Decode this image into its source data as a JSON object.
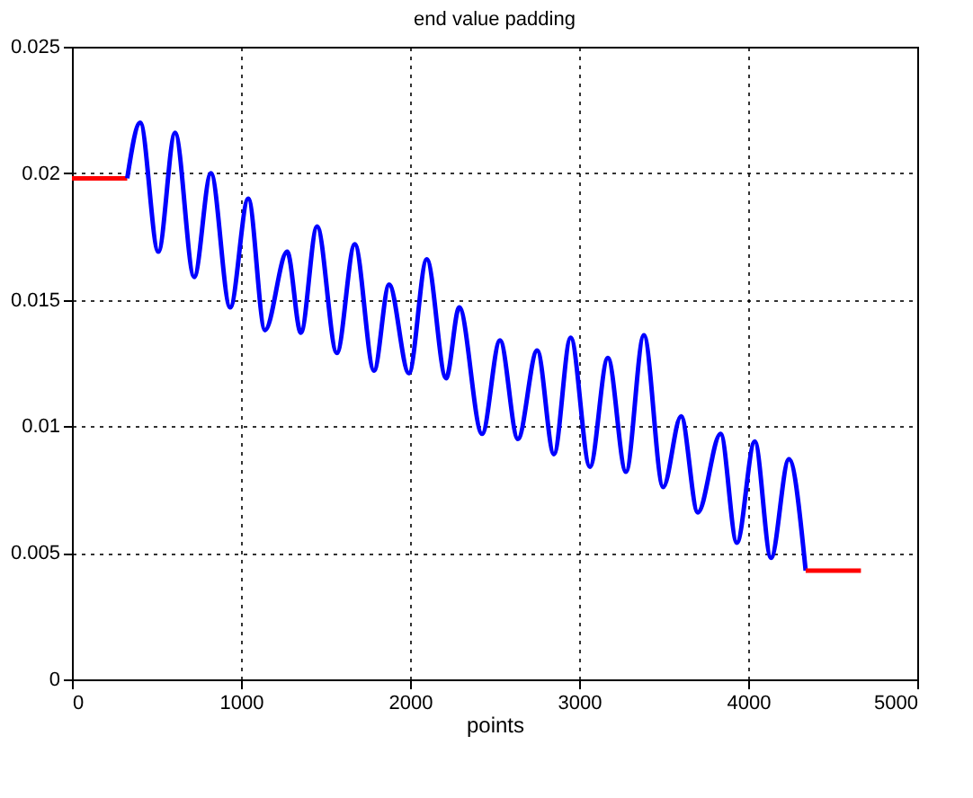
{
  "chart_data": {
    "type": "line",
    "title": "end value padding",
    "xlabel": "points",
    "series": [
      {
        "color": "#ff0000",
        "x": [
          0,
          327
        ],
        "values": [
          0.0198,
          0.0198
        ]
      },
      {
        "color": "#0000ff",
        "x": [
          327,
          404,
          511,
          610,
          723,
          822,
          936,
          1043,
          1142,
          1273,
          1354,
          1450,
          1567,
          1673,
          1787,
          1876,
          1993,
          2099,
          2213,
          2291,
          2426,
          2532,
          2638,
          2752,
          2851,
          2950,
          3064,
          3170,
          3277,
          3383,
          3497,
          3603,
          3702,
          3837,
          3933,
          4039,
          4135,
          4241,
          4340
        ],
        "values": [
          0.0198,
          0.022,
          0.0169,
          0.0216,
          0.0159,
          0.02,
          0.0147,
          0.019,
          0.0138,
          0.0169,
          0.0137,
          0.0179,
          0.0129,
          0.0172,
          0.0122,
          0.0156,
          0.0121,
          0.0166,
          0.0119,
          0.0147,
          0.0097,
          0.0134,
          0.0095,
          0.013,
          0.0089,
          0.0135,
          0.0084,
          0.0127,
          0.0082,
          0.0136,
          0.0076,
          0.0104,
          0.0066,
          0.0097,
          0.0054,
          0.0094,
          0.0048,
          0.0087,
          0.0043
        ]
      },
      {
        "color": "#ff0000",
        "x": [
          4340,
          4667
        ],
        "values": [
          0.0043,
          0.0043
        ]
      }
    ],
    "xlim": [
      0,
      5000
    ],
    "xticks": [
      0,
      1000,
      2000,
      3000,
      4000,
      5000
    ],
    "ylim": [
      0,
      0.025
    ],
    "yticks": [
      0,
      0.005,
      0.01,
      0.015,
      0.02,
      0.025
    ],
    "grid": true
  }
}
